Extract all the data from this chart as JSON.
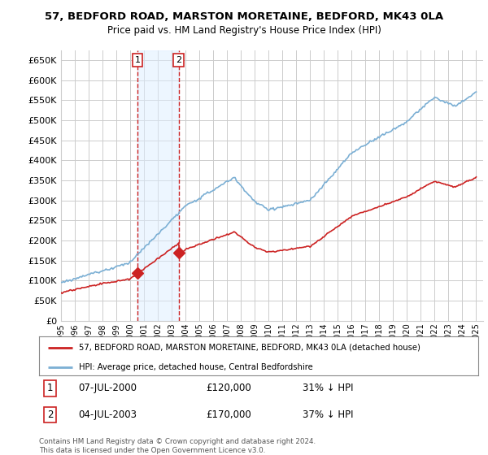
{
  "title": "57, BEDFORD ROAD, MARSTON MORETAINE, BEDFORD, MK43 0LA",
  "subtitle": "Price paid vs. HM Land Registry's House Price Index (HPI)",
  "ytick_vals": [
    0,
    50000,
    100000,
    150000,
    200000,
    250000,
    300000,
    350000,
    400000,
    450000,
    500000,
    550000,
    600000,
    650000
  ],
  "ylim": [
    0,
    675000
  ],
  "xlim_start": 1995.0,
  "xlim_end": 2025.5,
  "grid_color": "#cccccc",
  "background_color": "#ffffff",
  "hpi_line_color": "#7bafd4",
  "price_line_color": "#cc2222",
  "purchase1_x": 2000.52,
  "purchase1_y": 120000,
  "purchase2_x": 2003.5,
  "purchase2_y": 170000,
  "purchase1_label": "1",
  "purchase2_label": "2",
  "legend_price_label": "57, BEDFORD ROAD, MARSTON MORETAINE, BEDFORD, MK43 0LA (detached house)",
  "legend_hpi_label": "HPI: Average price, detached house, Central Bedfordshire",
  "footer": "Contains HM Land Registry data © Crown copyright and database right 2024.\nThis data is licensed under the Open Government Licence v3.0.",
  "xtick_years": [
    1995,
    1996,
    1997,
    1998,
    1999,
    2000,
    2001,
    2002,
    2003,
    2004,
    2005,
    2006,
    2007,
    2008,
    2009,
    2010,
    2011,
    2012,
    2013,
    2014,
    2015,
    2016,
    2017,
    2018,
    2019,
    2020,
    2021,
    2022,
    2023,
    2024,
    2025
  ],
  "shade_color": "#ddeeff",
  "shade_alpha": 0.5
}
